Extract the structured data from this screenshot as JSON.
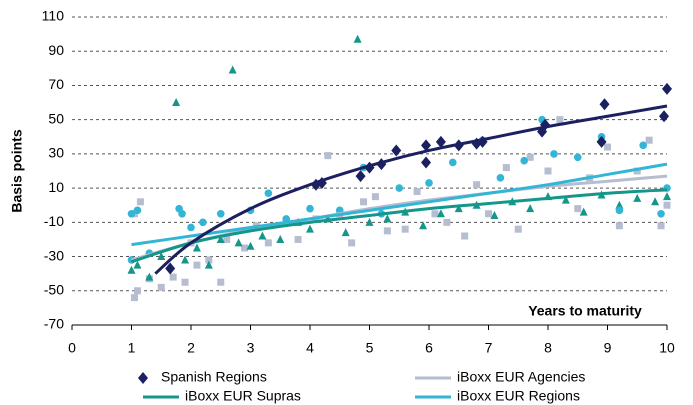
{
  "chart_data": {
    "type": "scatter",
    "xlabel": "Years to maturity",
    "ylabel": "Basis points",
    "xlim": [
      0,
      10
    ],
    "ylim": [
      -70,
      110
    ],
    "xticks": [
      0,
      1,
      2,
      3,
      4,
      5,
      6,
      7,
      8,
      9,
      10
    ],
    "yticks": [
      -70,
      -50,
      -30,
      -10,
      10,
      30,
      50,
      70,
      90,
      110
    ],
    "grid": true,
    "series": [
      {
        "name": "Spanish Regions",
        "color": "#1b2060",
        "marker": "diamond",
        "legend": "marker",
        "x": [
          1.65,
          4.1,
          4.2,
          4.85,
          5.0,
          5.2,
          5.45,
          5.95,
          5.95,
          6.2,
          6.5,
          6.8,
          6.9,
          7.9,
          7.95,
          8.9,
          8.95,
          9.95,
          10.0
        ],
        "values": [
          -37,
          12,
          13,
          17,
          22,
          24,
          32,
          25,
          35,
          37,
          35,
          36,
          37,
          43,
          47,
          37,
          59,
          52,
          68
        ],
        "trend": {
          "x": [
            1.4,
            2,
            3,
            4,
            5,
            6,
            7,
            8,
            9,
            10
          ],
          "values": [
            -40,
            -22,
            -2,
            12,
            23,
            32,
            39,
            46,
            52,
            58
          ]
        }
      },
      {
        "name": "iBoxx EUR Agencies",
        "color": "#b6bdd0",
        "marker": "square",
        "legend": "line",
        "x": [
          1.05,
          1.1,
          1.05,
          1.15,
          1.3,
          1.5,
          1.7,
          1.9,
          2.0,
          2.1,
          2.3,
          2.5,
          2.6,
          2.9,
          3.1,
          3.3,
          3.6,
          3.8,
          4.1,
          4.3,
          4.5,
          4.7,
          4.9,
          5.1,
          5.3,
          5.6,
          5.8,
          6.1,
          6.3,
          6.6,
          6.8,
          7.0,
          7.3,
          7.5,
          7.7,
          8.0,
          8.2,
          8.5,
          8.7,
          9.0,
          9.2,
          9.5,
          9.7,
          9.9,
          10.0
        ],
        "values": [
          -54,
          -50,
          -5,
          2,
          -43,
          -48,
          -42,
          -45,
          -22,
          -35,
          -32,
          -45,
          -20,
          -25,
          -12,
          -22,
          -10,
          -20,
          -8,
          29,
          -5,
          -22,
          2,
          5,
          -15,
          -14,
          8,
          -5,
          -10,
          -18,
          12,
          -5,
          22,
          -14,
          28,
          20,
          50,
          -2,
          16,
          34,
          -12,
          20,
          38,
          -12,
          0
        ],
        "trend": {
          "x": [
            1,
            2,
            3,
            4,
            5,
            6,
            7,
            8,
            9,
            10
          ],
          "values": [
            -32,
            -22,
            -14,
            -8,
            -2,
            3,
            7,
            11,
            14,
            17
          ]
        }
      },
      {
        "name": "iBoxx EUR Supras",
        "color": "#14968a",
        "marker": "triangle",
        "legend": "line",
        "x": [
          1.0,
          1.1,
          1.3,
          1.5,
          1.75,
          1.9,
          2.1,
          2.3,
          2.5,
          2.7,
          2.8,
          3.0,
          3.2,
          3.5,
          3.8,
          4.0,
          4.3,
          4.6,
          4.8,
          5.0,
          5.3,
          5.6,
          5.9,
          6.2,
          6.5,
          6.8,
          7.1,
          7.4,
          7.7,
          8.0,
          8.3,
          8.6,
          8.9,
          9.2,
          9.5,
          9.8,
          10.0
        ],
        "values": [
          -38,
          -35,
          -42,
          -30,
          60,
          -32,
          -25,
          -35,
          -20,
          79,
          -22,
          -24,
          -18,
          -20,
          -10,
          -14,
          -8,
          -16,
          97,
          -10,
          -8,
          -4,
          -12,
          -5,
          -2,
          0,
          -6,
          2,
          -2,
          5,
          3,
          -4,
          6,
          0,
          4,
          2,
          5
        ],
        "trend": {
          "x": [
            1,
            2,
            3,
            4,
            5,
            6,
            7,
            8,
            9,
            10
          ],
          "values": [
            -33,
            -22,
            -15,
            -10,
            -6,
            -2,
            1,
            4,
            7,
            9
          ]
        }
      },
      {
        "name": "iBoxx EUR Regions",
        "color": "#33b5d6",
        "marker": "circle",
        "legend": "line",
        "x": [
          1.0,
          1.1,
          1.0,
          1.3,
          1.8,
          1.85,
          2.0,
          2.2,
          2.5,
          3.0,
          3.3,
          3.6,
          4.0,
          4.5,
          4.9,
          5.2,
          5.5,
          6.0,
          6.4,
          6.9,
          7.2,
          7.6,
          7.9,
          8.1,
          8.5,
          8.9,
          9.2,
          9.6,
          9.9,
          10.0
        ],
        "values": [
          -5,
          -3,
          -32,
          -28,
          -2,
          -5,
          -13,
          -10,
          -5,
          -3,
          7,
          -8,
          -2,
          -3,
          22,
          -5,
          10,
          13,
          25,
          38,
          16,
          26,
          50,
          30,
          28,
          40,
          -3,
          35,
          -5,
          10
        ],
        "trend": {
          "x": [
            1,
            2,
            3,
            4,
            5,
            6,
            7,
            8,
            9,
            10
          ],
          "values": [
            -23,
            -18,
            -13,
            -8,
            -3,
            2,
            7,
            12,
            18,
            24
          ]
        }
      }
    ]
  }
}
